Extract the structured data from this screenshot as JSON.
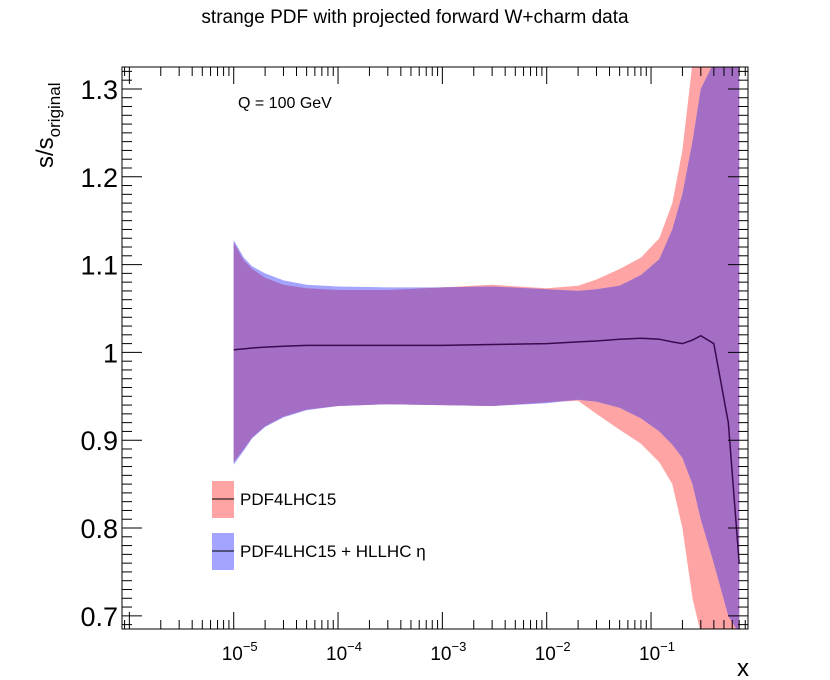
{
  "chart_data": {
    "type": "area",
    "title": "strange PDF with projected forward W+charm data",
    "xlabel": "x",
    "ylabel": "s/s",
    "ylabel_sub": "original",
    "x_scale": "log",
    "xlim": [
      8.5e-07,
      0.85
    ],
    "ylim": [
      0.685,
      1.325
    ],
    "annotation": "Q = 100 GeV",
    "legend_position": "bottom-left",
    "x_tick_labels": [
      {
        "value": 1e-05,
        "base": "10",
        "exp": "−5"
      },
      {
        "value": 0.0001,
        "base": "10",
        "exp": "−4"
      },
      {
        "value": 0.001,
        "base": "10",
        "exp": "−3"
      },
      {
        "value": 0.01,
        "base": "10",
        "exp": "−2"
      },
      {
        "value": 0.1,
        "base": "10",
        "exp": "−1"
      }
    ],
    "y_tick_labels": [
      {
        "value": 0.7,
        "label": "0.7"
      },
      {
        "value": 0.8,
        "label": "0.8"
      },
      {
        "value": 0.9,
        "label": "0.9"
      },
      {
        "value": 1.0,
        "label": "1"
      },
      {
        "value": 1.1,
        "label": "1.1"
      },
      {
        "value": 1.2,
        "label": "1.2"
      },
      {
        "value": 1.3,
        "label": "1.3"
      }
    ],
    "x": [
      1e-05,
      1.25e-05,
      1.5e-05,
      2e-05,
      3e-05,
      5e-05,
      0.0001,
      0.0003,
      0.001,
      0.003,
      0.01,
      0.02,
      0.03,
      0.05,
      0.08,
      0.12,
      0.16,
      0.2,
      0.25,
      0.3,
      0.4,
      0.55,
      0.7
    ],
    "series": [
      {
        "name": "PDF4LHC15",
        "color": "#ffa4a4",
        "central": [
          1.003,
          1.004,
          1.005,
          1.006,
          1.007,
          1.008,
          1.008,
          1.008,
          1.008,
          1.009,
          1.01,
          1.012,
          1.013,
          1.015,
          1.016,
          1.015,
          1.012,
          1.01,
          1.014,
          1.019,
          1.01,
          0.92,
          0.76
        ],
        "upper": [
          1.125,
          1.105,
          1.095,
          1.085,
          1.077,
          1.073,
          1.071,
          1.071,
          1.074,
          1.077,
          1.073,
          1.076,
          1.083,
          1.095,
          1.108,
          1.13,
          1.17,
          1.23,
          1.33,
          1.33,
          1.33,
          1.33,
          1.33
        ],
        "lower": [
          0.875,
          0.89,
          0.903,
          0.916,
          0.927,
          0.935,
          0.939,
          0.941,
          0.94,
          0.939,
          0.943,
          0.945,
          0.93,
          0.912,
          0.896,
          0.875,
          0.85,
          0.8,
          0.72,
          0.68,
          0.68,
          0.68,
          0.68
        ]
      },
      {
        "name": "PDF4LHC15 + HLLHC η",
        "color": "#a4a4ff",
        "upper": [
          1.128,
          1.108,
          1.098,
          1.09,
          1.082,
          1.077,
          1.075,
          1.074,
          1.074,
          1.075,
          1.072,
          1.07,
          1.072,
          1.076,
          1.088,
          1.106,
          1.14,
          1.18,
          1.24,
          1.3,
          1.33,
          1.33,
          1.33
        ],
        "lower": [
          0.872,
          0.888,
          0.902,
          0.915,
          0.926,
          0.934,
          0.939,
          0.941,
          0.94,
          0.939,
          0.942,
          0.946,
          0.944,
          0.937,
          0.925,
          0.91,
          0.895,
          0.88,
          0.85,
          0.81,
          0.76,
          0.7,
          0.68
        ]
      }
    ],
    "overlap_color": "#a46ec4",
    "central_line_color": "#3a0a50"
  }
}
